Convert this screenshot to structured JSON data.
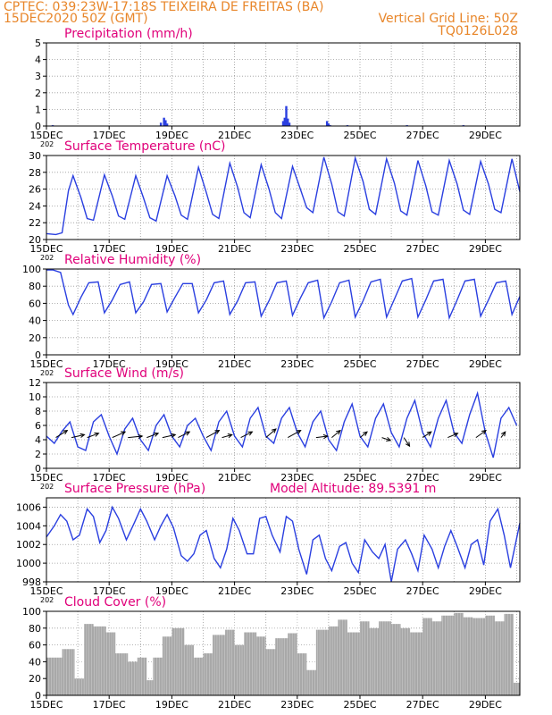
{
  "header": {
    "line1": "CPTEC:  039:23W-17:18S  TEIXEIRA DE FREITAS (BA)",
    "line2": "15DEC2020 50Z (GMT)",
    "grid_note": "Vertical Grid Line: 50Z",
    "model_id": "TQ0126L028"
  },
  "colors": {
    "header": "#e8862a",
    "panel_title": "#e0007a",
    "line": "#2a3fe0",
    "cloud_fill": "#a8a8a8",
    "grid": "#9a9a9a",
    "axis_text": "#000000"
  },
  "x_axis": {
    "tick_labels": [
      "15DEC",
      "17DEC",
      "19DEC",
      "21DEC",
      "23DEC",
      "25DEC",
      "27DEC",
      "29DEC"
    ],
    "year_stub": "202",
    "first_day": 15,
    "last_day": 30.1,
    "tick_days": [
      15,
      17,
      19,
      21,
      23,
      25,
      27,
      29
    ]
  },
  "chart_data": [
    {
      "type": "bar",
      "title": "Precipitation (mm/h)",
      "ylim": [
        0,
        5
      ],
      "yticks": [
        "0",
        "1",
        "2",
        "3",
        "4",
        "5"
      ],
      "x": [
        15.2,
        18.65,
        18.75,
        18.8,
        18.85,
        22.55,
        22.6,
        22.65,
        22.7,
        22.75,
        23.95,
        24.0,
        24.05,
        24.6,
        26.5,
        28.3
      ],
      "values": [
        0.05,
        0.2,
        0.5,
        0.35,
        0.15,
        0.3,
        0.5,
        1.2,
        0.45,
        0.2,
        0.3,
        0.15,
        0.05,
        0.05,
        0.05,
        0.05
      ]
    },
    {
      "type": "line",
      "title": "Surface Temperature (nC)",
      "ylim": [
        20,
        30
      ],
      "yticks": [
        "20",
        "22",
        "24",
        "26",
        "28",
        "30"
      ],
      "x": [
        15,
        15.3,
        15.5,
        15.7,
        15.85,
        16.1,
        16.3,
        16.5,
        16.85,
        17.1,
        17.3,
        17.5,
        17.85,
        18.1,
        18.3,
        18.5,
        18.85,
        19.1,
        19.3,
        19.5,
        19.85,
        20.1,
        20.3,
        20.5,
        20.85,
        21.1,
        21.3,
        21.5,
        21.85,
        22.1,
        22.3,
        22.5,
        22.85,
        23.1,
        23.3,
        23.5,
        23.85,
        24.1,
        24.3,
        24.5,
        24.85,
        25.1,
        25.3,
        25.5,
        25.85,
        26.1,
        26.3,
        26.5,
        26.85,
        27.1,
        27.3,
        27.5,
        27.85,
        28.1,
        28.3,
        28.5,
        28.85,
        29.1,
        29.3,
        29.5,
        29.85,
        30.1
      ],
      "values": [
        20.7,
        20.6,
        20.8,
        25.8,
        27.6,
        25.0,
        22.5,
        22.3,
        27.7,
        25.2,
        22.8,
        22.4,
        27.6,
        24.9,
        22.6,
        22.2,
        27.6,
        25.2,
        22.9,
        22.4,
        28.6,
        25.6,
        23.0,
        22.5,
        29.1,
        26.2,
        23.2,
        22.6,
        28.9,
        26.0,
        23.2,
        22.5,
        28.7,
        26.0,
        23.8,
        23.2,
        29.8,
        26.6,
        23.3,
        22.8,
        29.7,
        26.9,
        23.6,
        23.0,
        29.6,
        26.7,
        23.4,
        22.9,
        29.4,
        26.4,
        23.3,
        22.9,
        29.4,
        26.6,
        23.5,
        23.0,
        29.3,
        26.6,
        23.6,
        23.2,
        29.6,
        25.7
      ]
    },
    {
      "type": "line",
      "title": "Relative Humidity (%)",
      "ylim": [
        0,
        100
      ],
      "yticks": [
        "0",
        "20",
        "40",
        "60",
        "80",
        "100"
      ],
      "x": [
        15,
        15.2,
        15.45,
        15.7,
        15.85,
        16.1,
        16.35,
        16.65,
        16.85,
        17.1,
        17.35,
        17.65,
        17.85,
        18.1,
        18.35,
        18.65,
        18.85,
        19.1,
        19.35,
        19.65,
        19.85,
        20.1,
        20.35,
        20.65,
        20.85,
        21.1,
        21.35,
        21.65,
        21.85,
        22.1,
        22.35,
        22.65,
        22.85,
        23.1,
        23.35,
        23.65,
        23.85,
        24.1,
        24.35,
        24.65,
        24.85,
        25.1,
        25.35,
        25.65,
        25.85,
        26.1,
        26.35,
        26.65,
        26.85,
        27.1,
        27.35,
        27.65,
        27.85,
        28.1,
        28.35,
        28.65,
        28.85,
        29.1,
        29.35,
        29.65,
        29.85,
        30.1
      ],
      "values": [
        99,
        99,
        96,
        58,
        47,
        67,
        84,
        85,
        49,
        64,
        82,
        85,
        49,
        62,
        82,
        83,
        50,
        67,
        83,
        83,
        49,
        64,
        84,
        86,
        47,
        63,
        84,
        85,
        45,
        63,
        84,
        86,
        46,
        66,
        84,
        87,
        43,
        62,
        84,
        87,
        44,
        63,
        85,
        88,
        44,
        65,
        86,
        89,
        44,
        64,
        86,
        88,
        43,
        64,
        86,
        88,
        45,
        64,
        84,
        86,
        47,
        68
      ]
    },
    {
      "type": "line",
      "title": "Surface Wind (m/s)",
      "ylim": [
        0,
        12
      ],
      "yticks": [
        "0",
        "2",
        "4",
        "6",
        "8",
        "10",
        "12"
      ],
      "x": [
        15,
        15.25,
        15.5,
        15.75,
        16,
        16.25,
        16.5,
        16.75,
        17,
        17.25,
        17.5,
        17.75,
        18,
        18.25,
        18.5,
        18.75,
        19,
        19.25,
        19.5,
        19.75,
        20,
        20.25,
        20.5,
        20.75,
        21,
        21.25,
        21.5,
        21.75,
        22,
        22.25,
        22.5,
        22.75,
        23,
        23.25,
        23.5,
        23.75,
        24,
        24.25,
        24.5,
        24.75,
        25,
        25.25,
        25.5,
        25.75,
        26,
        26.25,
        26.5,
        26.75,
        27,
        27.25,
        27.5,
        27.75,
        28,
        28.25,
        28.5,
        28.75,
        29,
        29.25,
        29.5,
        29.75,
        30
      ],
      "values": [
        4.5,
        3.5,
        5.2,
        6.5,
        3.0,
        2.5,
        6.5,
        7.5,
        4.5,
        2.0,
        5.5,
        7.0,
        4.0,
        2.5,
        6.0,
        7.5,
        4.5,
        3.0,
        6.0,
        7.0,
        4.5,
        2.5,
        6.5,
        8.0,
        4.5,
        3.0,
        7.0,
        8.5,
        4.5,
        3.5,
        7.0,
        8.5,
        5.0,
        3.0,
        6.5,
        8.0,
        4.0,
        2.5,
        6.5,
        9.0,
        4.5,
        3.0,
        7.0,
        9.0,
        5.0,
        3.0,
        7.0,
        9.5,
        5.0,
        3.0,
        7.0,
        9.5,
        5.0,
        3.5,
        7.5,
        10.5,
        5.0,
        1.5,
        7.0,
        8.5,
        6.0
      ],
      "vectors": [
        {
          "day": 15.3,
          "u": 4.0,
          "v": 2.5
        },
        {
          "day": 15.8,
          "u": 4.5,
          "v": 1.0
        },
        {
          "day": 16.3,
          "u": 4.0,
          "v": 1.5
        },
        {
          "day": 17.1,
          "u": 4.5,
          "v": 2.0
        },
        {
          "day": 17.6,
          "u": 5.0,
          "v": 0.5
        },
        {
          "day": 18.2,
          "u": 4.0,
          "v": 1.5
        },
        {
          "day": 18.7,
          "u": 4.5,
          "v": 1.0
        },
        {
          "day": 19.2,
          "u": 4.0,
          "v": 2.0
        },
        {
          "day": 20.1,
          "u": 4.5,
          "v": 2.5
        },
        {
          "day": 20.6,
          "u": 3.5,
          "v": 1.0
        },
        {
          "day": 21.2,
          "u": 4.0,
          "v": 2.0
        },
        {
          "day": 22.0,
          "u": 3.5,
          "v": 3.0
        },
        {
          "day": 22.7,
          "u": 4.5,
          "v": 2.5
        },
        {
          "day": 23.6,
          "u": 4.0,
          "v": 0.5
        },
        {
          "day": 24.1,
          "u": 3.0,
          "v": 2.5
        },
        {
          "day": 25.0,
          "u": 2.5,
          "v": 2.0
        },
        {
          "day": 25.7,
          "u": 3.0,
          "v": -1.0
        },
        {
          "day": 26.4,
          "u": 2.0,
          "v": -3.0
        },
        {
          "day": 27.0,
          "u": 3.0,
          "v": 2.0
        },
        {
          "day": 27.8,
          "u": 3.5,
          "v": 1.5
        },
        {
          "day": 28.7,
          "u": 3.5,
          "v": 2.5
        },
        {
          "day": 29.5,
          "u": 1.5,
          "v": 2.0
        }
      ]
    },
    {
      "type": "line",
      "title": "Surface Pressure (hPa)",
      "annotation": "Model Altitude: 89.5391 m",
      "ylim": [
        998,
        1007
      ],
      "yticks": [
        "998",
        "1000",
        "1002",
        "1004",
        "1006"
      ],
      "x": [
        15,
        15.25,
        15.45,
        15.65,
        15.85,
        16.05,
        16.3,
        16.5,
        16.7,
        16.9,
        17.1,
        17.3,
        17.55,
        17.8,
        18.0,
        18.2,
        18.45,
        18.65,
        18.85,
        19.05,
        19.3,
        19.5,
        19.7,
        19.9,
        20.1,
        20.35,
        20.55,
        20.75,
        20.95,
        21.15,
        21.4,
        21.6,
        21.8,
        22.0,
        22.2,
        22.45,
        22.65,
        22.85,
        23.05,
        23.3,
        23.5,
        23.7,
        23.9,
        24.1,
        24.35,
        24.55,
        24.75,
        24.95,
        25.15,
        25.4,
        25.6,
        25.8,
        26.0,
        26.2,
        26.45,
        26.65,
        26.85,
        27.05,
        27.3,
        27.5,
        27.7,
        27.9,
        28.1,
        28.35,
        28.55,
        28.75,
        28.95,
        29.15,
        29.4,
        29.6,
        29.8,
        30.1
      ],
      "values": [
        1002.8,
        1004.0,
        1005.2,
        1004.5,
        1002.5,
        1003.0,
        1005.8,
        1005.0,
        1002.2,
        1003.5,
        1006.0,
        1004.8,
        1002.5,
        1004.3,
        1005.8,
        1004.5,
        1002.5,
        1004.0,
        1005.2,
        1003.8,
        1000.8,
        1000.2,
        1001.0,
        1003.0,
        1003.5,
        1000.5,
        999.5,
        1001.5,
        1004.8,
        1003.5,
        1001.0,
        1001.0,
        1004.8,
        1005.0,
        1003.0,
        1001.2,
        1005.0,
        1004.5,
        1001.5,
        998.8,
        1002.5,
        1003.0,
        1000.5,
        999.2,
        1001.8,
        1002.2,
        1000.0,
        999.0,
        1002.5,
        1001.2,
        1000.5,
        1002.0,
        998.0,
        1001.5,
        1002.5,
        1001.0,
        999.2,
        1003.0,
        1001.5,
        999.5,
        1001.8,
        1003.5,
        1001.8,
        999.5,
        1002.0,
        1002.5,
        999.8,
        1004.5,
        1005.8,
        1003.0,
        999.5,
        1004.3
      ]
    },
    {
      "type": "bar",
      "title": "Cloud Cover (%)",
      "ylim": [
        0,
        100
      ],
      "yticks": [
        "0",
        "20",
        "40",
        "60",
        "80",
        "100"
      ],
      "x": [
        15,
        15.5,
        15.9,
        16.2,
        16.5,
        16.9,
        17.2,
        17.6,
        17.9,
        18.2,
        18.4,
        18.7,
        19.0,
        19.4,
        19.7,
        20.0,
        20.3,
        20.7,
        21.0,
        21.3,
        21.7,
        22.0,
        22.3,
        22.7,
        23.0,
        23.3,
        23.6,
        24.0,
        24.3,
        24.6,
        25.0,
        25.3,
        25.6,
        26.0,
        26.3,
        26.6,
        27.0,
        27.3,
        27.6,
        28.0,
        28.3,
        28.6,
        29.0,
        29.3,
        29.6,
        29.9
      ],
      "values": [
        45,
        55,
        20,
        85,
        82,
        75,
        50,
        40,
        45,
        18,
        45,
        70,
        80,
        60,
        45,
        50,
        72,
        78,
        60,
        75,
        70,
        55,
        68,
        74,
        50,
        30,
        78,
        82,
        90,
        75,
        88,
        80,
        88,
        85,
        80,
        75,
        92,
        88,
        95,
        98,
        93,
        92,
        95,
        88,
        97,
        15
      ]
    }
  ]
}
